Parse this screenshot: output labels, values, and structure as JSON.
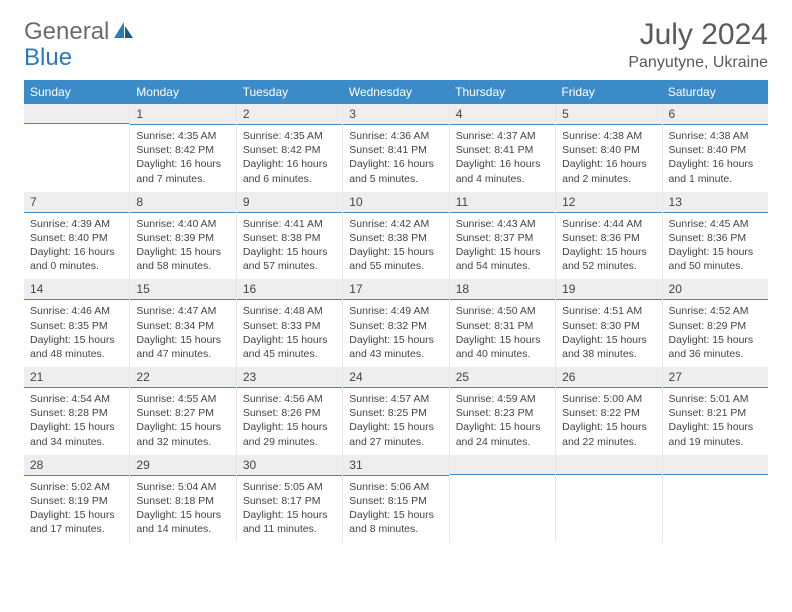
{
  "logo": {
    "word1": "General",
    "word2": "Blue"
  },
  "title": "July 2024",
  "location": "Panyutyne, Ukraine",
  "colors": {
    "header_bg": "#3b8bc8",
    "header_text": "#ffffff",
    "daynum_bg": "#eeeeee",
    "daynum_border": "#3b8bc8",
    "body_text": "#444444",
    "logo_gray": "#6b6b6b",
    "logo_blue": "#2a7ab8"
  },
  "day_names": [
    "Sunday",
    "Monday",
    "Tuesday",
    "Wednesday",
    "Thursday",
    "Friday",
    "Saturday"
  ],
  "weeks": [
    [
      {
        "num": "",
        "lines": []
      },
      {
        "num": "1",
        "lines": [
          "Sunrise: 4:35 AM",
          "Sunset: 8:42 PM",
          "Daylight: 16 hours and 7 minutes."
        ]
      },
      {
        "num": "2",
        "lines": [
          "Sunrise: 4:35 AM",
          "Sunset: 8:42 PM",
          "Daylight: 16 hours and 6 minutes."
        ]
      },
      {
        "num": "3",
        "lines": [
          "Sunrise: 4:36 AM",
          "Sunset: 8:41 PM",
          "Daylight: 16 hours and 5 minutes."
        ]
      },
      {
        "num": "4",
        "lines": [
          "Sunrise: 4:37 AM",
          "Sunset: 8:41 PM",
          "Daylight: 16 hours and 4 minutes."
        ]
      },
      {
        "num": "5",
        "lines": [
          "Sunrise: 4:38 AM",
          "Sunset: 8:40 PM",
          "Daylight: 16 hours and 2 minutes."
        ]
      },
      {
        "num": "6",
        "lines": [
          "Sunrise: 4:38 AM",
          "Sunset: 8:40 PM",
          "Daylight: 16 hours and 1 minute."
        ]
      }
    ],
    [
      {
        "num": "7",
        "lines": [
          "Sunrise: 4:39 AM",
          "Sunset: 8:40 PM",
          "Daylight: 16 hours and 0 minutes."
        ]
      },
      {
        "num": "8",
        "lines": [
          "Sunrise: 4:40 AM",
          "Sunset: 8:39 PM",
          "Daylight: 15 hours and 58 minutes."
        ]
      },
      {
        "num": "9",
        "lines": [
          "Sunrise: 4:41 AM",
          "Sunset: 8:38 PM",
          "Daylight: 15 hours and 57 minutes."
        ]
      },
      {
        "num": "10",
        "lines": [
          "Sunrise: 4:42 AM",
          "Sunset: 8:38 PM",
          "Daylight: 15 hours and 55 minutes."
        ]
      },
      {
        "num": "11",
        "lines": [
          "Sunrise: 4:43 AM",
          "Sunset: 8:37 PM",
          "Daylight: 15 hours and 54 minutes."
        ]
      },
      {
        "num": "12",
        "lines": [
          "Sunrise: 4:44 AM",
          "Sunset: 8:36 PM",
          "Daylight: 15 hours and 52 minutes."
        ]
      },
      {
        "num": "13",
        "lines": [
          "Sunrise: 4:45 AM",
          "Sunset: 8:36 PM",
          "Daylight: 15 hours and 50 minutes."
        ]
      }
    ],
    [
      {
        "num": "14",
        "lines": [
          "Sunrise: 4:46 AM",
          "Sunset: 8:35 PM",
          "Daylight: 15 hours and 48 minutes."
        ]
      },
      {
        "num": "15",
        "lines": [
          "Sunrise: 4:47 AM",
          "Sunset: 8:34 PM",
          "Daylight: 15 hours and 47 minutes."
        ]
      },
      {
        "num": "16",
        "lines": [
          "Sunrise: 4:48 AM",
          "Sunset: 8:33 PM",
          "Daylight: 15 hours and 45 minutes."
        ]
      },
      {
        "num": "17",
        "lines": [
          "Sunrise: 4:49 AM",
          "Sunset: 8:32 PM",
          "Daylight: 15 hours and 43 minutes."
        ]
      },
      {
        "num": "18",
        "lines": [
          "Sunrise: 4:50 AM",
          "Sunset: 8:31 PM",
          "Daylight: 15 hours and 40 minutes."
        ]
      },
      {
        "num": "19",
        "lines": [
          "Sunrise: 4:51 AM",
          "Sunset: 8:30 PM",
          "Daylight: 15 hours and 38 minutes."
        ]
      },
      {
        "num": "20",
        "lines": [
          "Sunrise: 4:52 AM",
          "Sunset: 8:29 PM",
          "Daylight: 15 hours and 36 minutes."
        ]
      }
    ],
    [
      {
        "num": "21",
        "lines": [
          "Sunrise: 4:54 AM",
          "Sunset: 8:28 PM",
          "Daylight: 15 hours and 34 minutes."
        ]
      },
      {
        "num": "22",
        "lines": [
          "Sunrise: 4:55 AM",
          "Sunset: 8:27 PM",
          "Daylight: 15 hours and 32 minutes."
        ]
      },
      {
        "num": "23",
        "lines": [
          "Sunrise: 4:56 AM",
          "Sunset: 8:26 PM",
          "Daylight: 15 hours and 29 minutes."
        ]
      },
      {
        "num": "24",
        "lines": [
          "Sunrise: 4:57 AM",
          "Sunset: 8:25 PM",
          "Daylight: 15 hours and 27 minutes."
        ]
      },
      {
        "num": "25",
        "lines": [
          "Sunrise: 4:59 AM",
          "Sunset: 8:23 PM",
          "Daylight: 15 hours and 24 minutes."
        ]
      },
      {
        "num": "26",
        "lines": [
          "Sunrise: 5:00 AM",
          "Sunset: 8:22 PM",
          "Daylight: 15 hours and 22 minutes."
        ]
      },
      {
        "num": "27",
        "lines": [
          "Sunrise: 5:01 AM",
          "Sunset: 8:21 PM",
          "Daylight: 15 hours and 19 minutes."
        ]
      }
    ],
    [
      {
        "num": "28",
        "lines": [
          "Sunrise: 5:02 AM",
          "Sunset: 8:19 PM",
          "Daylight: 15 hours and 17 minutes."
        ]
      },
      {
        "num": "29",
        "lines": [
          "Sunrise: 5:04 AM",
          "Sunset: 8:18 PM",
          "Daylight: 15 hours and 14 minutes."
        ]
      },
      {
        "num": "30",
        "lines": [
          "Sunrise: 5:05 AM",
          "Sunset: 8:17 PM",
          "Daylight: 15 hours and 11 minutes."
        ]
      },
      {
        "num": "31",
        "lines": [
          "Sunrise: 5:06 AM",
          "Sunset: 8:15 PM",
          "Daylight: 15 hours and 8 minutes."
        ]
      },
      {
        "num": "",
        "lines": []
      },
      {
        "num": "",
        "lines": []
      },
      {
        "num": "",
        "lines": []
      }
    ]
  ]
}
